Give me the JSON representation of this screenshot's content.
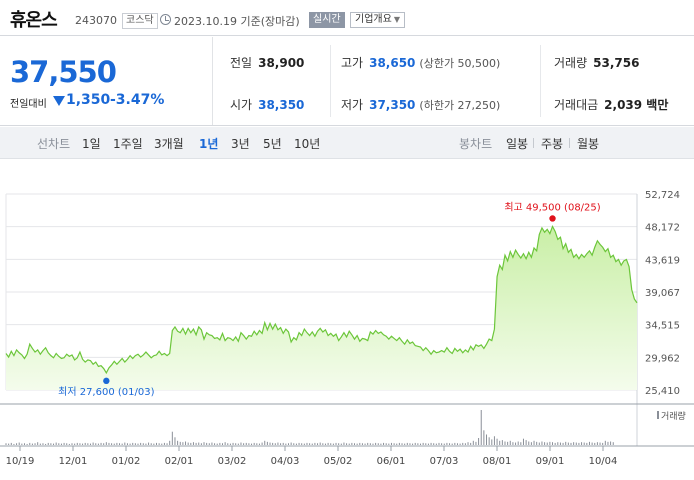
{
  "header": {
    "stock_name": "휴온스",
    "stock_code": "243070",
    "market": "코스닥",
    "timestamp": "2023.10.19 기준(장마감)",
    "realtime_label": "실시간",
    "overview_label": "기업개요",
    "overview_caret": "▼"
  },
  "quote": {
    "price": "37,550",
    "change_label": "전일대비",
    "change": "1,350",
    "change_pct": "-3.47%",
    "prev_close": {
      "label": "전일",
      "value": "38,900"
    },
    "high": {
      "label": "고가",
      "value": "38,650",
      "extra": "(상한가 50,500)"
    },
    "volume": {
      "label": "거래량",
      "value": "53,756"
    },
    "open": {
      "label": "시가",
      "value": "38,350"
    },
    "low": {
      "label": "저가",
      "value": "37,350",
      "extra": "(하한가 27,250)"
    },
    "trade_value": {
      "label": "거래대금",
      "value": "2,039 백만"
    }
  },
  "periods": {
    "line_label": "선차트",
    "line_items": [
      "1일",
      "1주일",
      "3개월",
      "1년",
      "3년",
      "5년",
      "10년"
    ],
    "selected": "1년",
    "candle_label": "봉차트",
    "candle_items": [
      "일봉",
      "주봉",
      "월봉"
    ]
  },
  "chart_data": {
    "type": "area",
    "y_ticks": [
      "52,724",
      "48,172",
      "43,619",
      "39,067",
      "34,515",
      "29,962",
      "25,410"
    ],
    "x_ticks": [
      "10/19",
      "12/01",
      "01/02",
      "02/01",
      "03/02",
      "04/03",
      "05/02",
      "06/01",
      "07/03",
      "08/01",
      "09/01",
      "10/04"
    ],
    "ylim": [
      25410,
      52724
    ],
    "high_label": "최고 49,500 (08/25)",
    "low_label": "최저 27,600 (01/03)",
    "volume_legend": "거래량",
    "colors": {
      "line": "#6cc63a",
      "fill_top": "#c9efa6",
      "fill_bottom": "#f4fcec",
      "high_dot": "#e0121b",
      "low_dot": "#1a68d6",
      "volume_bar": "#8a8f98"
    },
    "series": [
      {
        "values": [
          30500,
          30000,
          30800,
          30200,
          31000,
          30600,
          30300,
          29800,
          30400,
          31800,
          31200,
          30700,
          31000,
          30400,
          30900,
          31300,
          30600,
          30200,
          29900,
          30500,
          30100,
          29800,
          29900,
          30400,
          30100,
          30300,
          29600,
          29900,
          30700,
          29700,
          29300,
          29600,
          29500,
          29000,
          29300,
          28700,
          28800,
          28400,
          27800,
          28500,
          28900,
          29400,
          29000,
          29400,
          29800,
          29300,
          29700,
          30200,
          29800,
          30200,
          30400,
          30000,
          30300,
          30700,
          30300,
          29900,
          30200,
          30300,
          30800,
          30300,
          30500,
          30200,
          30500,
          33700,
          34200,
          33600,
          33400,
          34000,
          33200,
          34000,
          33400,
          33900,
          33100,
          34200,
          33800,
          32500,
          33400,
          33100,
          33000,
          32600,
          32700,
          32400,
          33300,
          32300,
          32700,
          32600,
          32300,
          32800,
          32200,
          33400,
          33000,
          32500,
          33000,
          32900,
          33600,
          33100,
          33700,
          33300,
          34800,
          33800,
          34700,
          33900,
          34600,
          33800,
          34100,
          33300,
          33900,
          33500,
          32100,
          32700,
          32400,
          33400,
          33000,
          33900,
          33400,
          33000,
          33500,
          32900,
          33600,
          34000,
          33500,
          33800,
          33000,
          33300,
          32900,
          33200,
          32300,
          32800,
          33400,
          32800,
          33600,
          33100,
          32500,
          33000,
          32200,
          32600,
          32500,
          32300,
          33500,
          33200,
          33700,
          33300,
          33500,
          33100,
          32900,
          32500,
          32900,
          32600,
          32300,
          32700,
          32200,
          31800,
          32400,
          31900,
          32100,
          31600,
          31500,
          31400,
          30900,
          31300,
          30900,
          30400,
          30900,
          30600,
          30700,
          30900,
          30700,
          31300,
          30800,
          30500,
          31200,
          30800,
          31100,
          30600,
          31000,
          30700,
          31500,
          31000,
          31700,
          31500,
          31700,
          31200,
          31800,
          32500,
          32300,
          33900,
          41200,
          42800,
          42200,
          44200,
          43400,
          44700,
          43900,
          44900,
          44300,
          43800,
          44400,
          43700,
          44600,
          43900,
          45200,
          44800,
          47100,
          48000,
          47400,
          47800,
          47200,
          48200,
          47500,
          46400,
          46700,
          45100,
          45800,
          44600,
          45000,
          43900,
          44300,
          43700,
          44300,
          43900,
          44400,
          44800,
          44200,
          45300,
          46200,
          45700,
          45300,
          44700,
          45100,
          43900,
          44200,
          43300,
          43600,
          42800,
          43400,
          43600,
          42600,
          39400,
          38100,
          37550
        ]
      },
      {
        "name": "거래량",
        "values": [
          0.05,
          0.04,
          0.06,
          0.03,
          0.05,
          0.07,
          0.04,
          0.05,
          0.03,
          0.06,
          0.04,
          0.05,
          0.08,
          0.04,
          0.05,
          0.03,
          0.06,
          0.05,
          0.04,
          0.07,
          0.05,
          0.04,
          0.06,
          0.05,
          0.03,
          0.05,
          0.04,
          0.06,
          0.05,
          0.04,
          0.06,
          0.05,
          0.04,
          0.07,
          0.05,
          0.04,
          0.06,
          0.05,
          0.08,
          0.06,
          0.05,
          0.04,
          0.06,
          0.05,
          0.04,
          0.07,
          0.05,
          0.04,
          0.06,
          0.05,
          0.04,
          0.06,
          0.05,
          0.04,
          0.07,
          0.05,
          0.04,
          0.06,
          0.05,
          0.04,
          0.06,
          0.05,
          0.12,
          0.38,
          0.22,
          0.12,
          0.09,
          0.08,
          0.1,
          0.07,
          0.06,
          0.08,
          0.06,
          0.07,
          0.05,
          0.08,
          0.06,
          0.05,
          0.07,
          0.05,
          0.04,
          0.06,
          0.05,
          0.08,
          0.05,
          0.04,
          0.06,
          0.05,
          0.04,
          0.07,
          0.05,
          0.06,
          0.05,
          0.04,
          0.06,
          0.05,
          0.04,
          0.07,
          0.12,
          0.09,
          0.07,
          0.06,
          0.05,
          0.07,
          0.05,
          0.06,
          0.04,
          0.05,
          0.07,
          0.05,
          0.04,
          0.06,
          0.05,
          0.04,
          0.06,
          0.05,
          0.04,
          0.06,
          0.05,
          0.07,
          0.05,
          0.04,
          0.06,
          0.05,
          0.04,
          0.06,
          0.05,
          0.04,
          0.07,
          0.05,
          0.04,
          0.06,
          0.05,
          0.04,
          0.06,
          0.05,
          0.04,
          0.06,
          0.05,
          0.04,
          0.06,
          0.05,
          0.04,
          0.06,
          0.05,
          0.04,
          0.06,
          0.05,
          0.04,
          0.06,
          0.05,
          0.04,
          0.06,
          0.05,
          0.04,
          0.06,
          0.05,
          0.04,
          0.06,
          0.05,
          0.04,
          0.06,
          0.05,
          0.04,
          0.06,
          0.05,
          0.04,
          0.06,
          0.05,
          0.04,
          0.06,
          0.05,
          0.04,
          0.06,
          0.05,
          0.08,
          0.06,
          0.12,
          0.09,
          0.2,
          1.0,
          0.42,
          0.3,
          0.22,
          0.16,
          0.25,
          0.18,
          0.12,
          0.14,
          0.1,
          0.09,
          0.12,
          0.08,
          0.07,
          0.1,
          0.08,
          0.18,
          0.14,
          0.1,
          0.08,
          0.12,
          0.09,
          0.07,
          0.1,
          0.08,
          0.07,
          0.09,
          0.08,
          0.06,
          0.08,
          0.07,
          0.06,
          0.09,
          0.07,
          0.06,
          0.08,
          0.07,
          0.06,
          0.08,
          0.07,
          0.06,
          0.09,
          0.07,
          0.06,
          0.08,
          0.07,
          0.06,
          0.12,
          0.09,
          0.1,
          0.08
        ]
      }
    ]
  }
}
